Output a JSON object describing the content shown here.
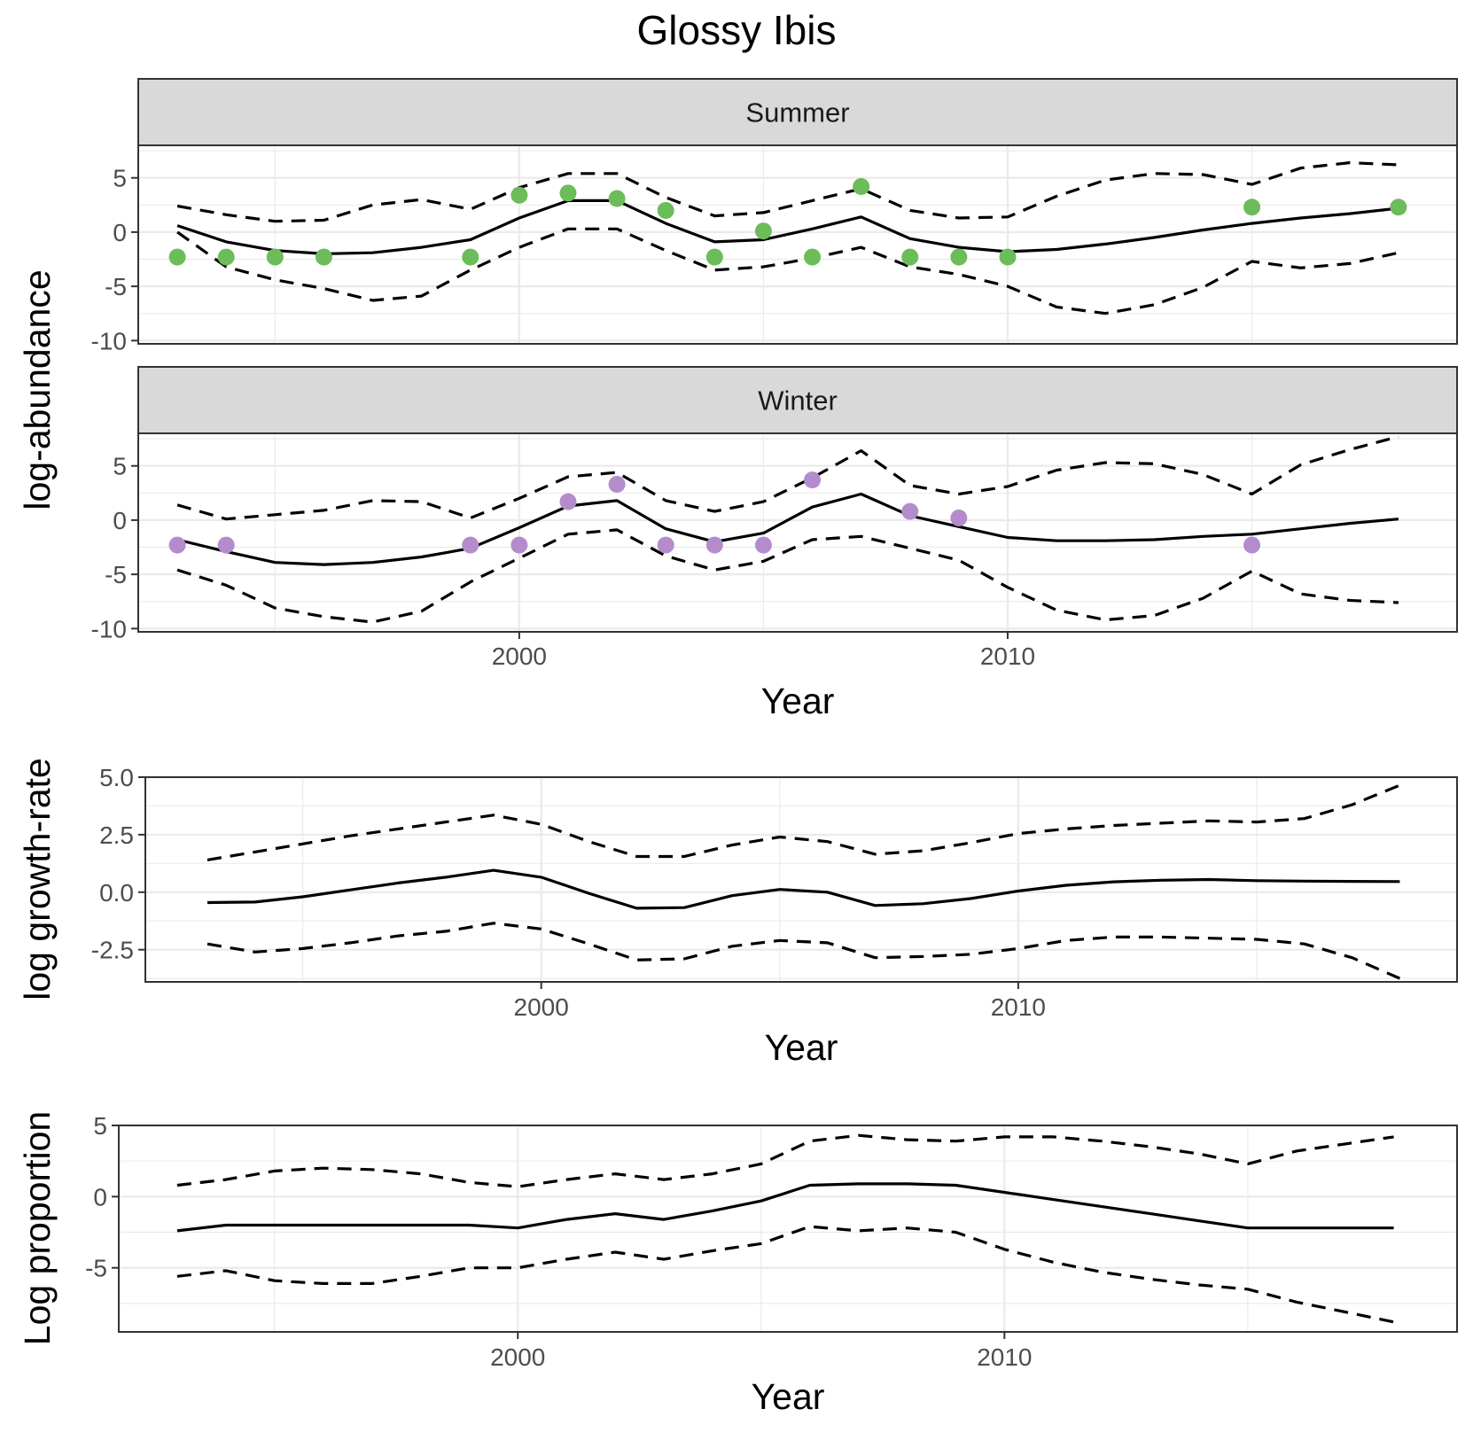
{
  "chart_data": {
    "title": "Glossy Ibis",
    "colors": {
      "summer_points": "#6cbc5a",
      "winter_points": "#b48ccc",
      "strip_fill": "#d9d9d9",
      "lines": "#000000"
    },
    "panels": [
      {
        "id": "summer",
        "type": "line",
        "strip": "Summer",
        "ylabel": "log-abundance",
        "xlabel": "",
        "xlim": [
          1992.2,
          2019.2
        ],
        "ylim": [
          -10.3,
          8
        ],
        "yticks": [
          -10,
          -5,
          0,
          5
        ],
        "ytick_labels": [
          "-10",
          "-5",
          "0",
          "5"
        ],
        "xticks": [],
        "xtick_labels": [],
        "series": [
          {
            "role": "estimate",
            "style": "solid",
            "x": [
              1993,
              1994,
              1995,
              1996,
              1997,
              1998,
              1999,
              2000,
              2001,
              2002,
              2003,
              2004,
              2005,
              2006,
              2007,
              2008,
              2009,
              2010,
              2011,
              2012,
              2013,
              2014,
              2015,
              2016,
              2017,
              2018
            ],
            "y": [
              0.6,
              -0.9,
              -1.7,
              -2.0,
              -1.9,
              -1.4,
              -0.7,
              1.3,
              2.9,
              2.9,
              0.8,
              -0.9,
              -0.7,
              0.3,
              1.4,
              -0.6,
              -1.4,
              -1.8,
              -1.6,
              -1.1,
              -0.5,
              0.2,
              0.8,
              1.3,
              1.7,
              2.2
            ]
          },
          {
            "role": "upper",
            "style": "dashed",
            "x": [
              1993,
              1994,
              1995,
              1996,
              1997,
              1998,
              1999,
              2000,
              2001,
              2002,
              2003,
              2004,
              2005,
              2006,
              2007,
              2008,
              2009,
              2010,
              2011,
              2012,
              2013,
              2014,
              2015,
              2016,
              2017,
              2018
            ],
            "y": [
              2.4,
              1.6,
              1.0,
              1.1,
              2.5,
              3.0,
              2.1,
              4.1,
              5.4,
              5.4,
              3.2,
              1.5,
              1.8,
              2.9,
              4.0,
              2.0,
              1.3,
              1.4,
              3.3,
              4.8,
              5.4,
              5.3,
              4.4,
              5.9,
              6.4,
              6.2
            ]
          },
          {
            "role": "lower",
            "style": "dashed",
            "x": [
              1993,
              1994,
              1995,
              1996,
              1997,
              1998,
              1999,
              2000,
              2001,
              2002,
              2003,
              2004,
              2005,
              2006,
              2007,
              2008,
              2009,
              2010,
              2011,
              2012,
              2013,
              2014,
              2015,
              2016,
              2017,
              2018
            ],
            "y": [
              0.0,
              -3.2,
              -4.4,
              -5.2,
              -6.3,
              -5.9,
              -3.5,
              -1.4,
              0.3,
              0.3,
              -1.7,
              -3.5,
              -3.2,
              -2.4,
              -1.4,
              -3.2,
              -3.9,
              -5.0,
              -6.9,
              -7.5,
              -6.7,
              -5.1,
              -2.7,
              -3.3,
              -2.9,
              -1.9
            ]
          }
        ],
        "points": {
          "x": [
            1993,
            1994,
            1995,
            1996,
            1999,
            2000,
            2001,
            2002,
            2003,
            2004,
            2005,
            2006,
            2007,
            2008,
            2009,
            2010,
            2015,
            2018
          ],
          "y": [
            -2.3,
            -2.3,
            -2.3,
            -2.3,
            -2.3,
            3.4,
            3.6,
            3.1,
            2.0,
            -2.3,
            0.1,
            -2.3,
            4.2,
            -2.3,
            -2.3,
            -2.3,
            2.3,
            2.3
          ]
        }
      },
      {
        "id": "winter",
        "type": "line",
        "strip": "Winter",
        "ylabel": "",
        "xlabel": "Year",
        "xlim": [
          1992.2,
          2019.2
        ],
        "ylim": [
          -10.3,
          8
        ],
        "yticks": [
          -10,
          -5,
          0,
          5
        ],
        "ytick_labels": [
          "-10",
          "-5",
          "0",
          "5"
        ],
        "xticks": [
          2000,
          2010
        ],
        "xtick_labels": [
          "2000",
          "2010"
        ],
        "series": [
          {
            "role": "estimate",
            "style": "solid",
            "x": [
              1993,
              1994,
              1995,
              1996,
              1997,
              1998,
              1999,
              2000,
              2001,
              2002,
              2003,
              2004,
              2005,
              2006,
              2007,
              2008,
              2009,
              2010,
              2011,
              2012,
              2013,
              2014,
              2015,
              2016,
              2017,
              2018
            ],
            "y": [
              -1.8,
              -2.9,
              -3.9,
              -4.1,
              -3.9,
              -3.4,
              -2.6,
              -0.7,
              1.3,
              1.8,
              -0.8,
              -2.0,
              -1.2,
              1.2,
              2.4,
              0.4,
              -0.6,
              -1.6,
              -1.9,
              -1.9,
              -1.8,
              -1.5,
              -1.3,
              -0.8,
              -0.3,
              0.1
            ]
          },
          {
            "role": "upper",
            "style": "dashed",
            "x": [
              1993,
              1994,
              1995,
              1996,
              1997,
              1998,
              1999,
              2000,
              2001,
              2002,
              2003,
              2004,
              2005,
              2006,
              2007,
              2008,
              2009,
              2010,
              2011,
              2012,
              2013,
              2014,
              2015,
              2016,
              2017,
              2018
            ],
            "y": [
              1.4,
              0.1,
              0.5,
              0.9,
              1.8,
              1.7,
              0.2,
              2.0,
              4.0,
              4.4,
              1.8,
              0.8,
              1.7,
              3.9,
              6.4,
              3.2,
              2.4,
              3.1,
              4.6,
              5.3,
              5.2,
              4.2,
              2.4,
              5.1,
              6.5,
              7.7
            ]
          },
          {
            "role": "lower",
            "style": "dashed",
            "x": [
              1993,
              1994,
              1995,
              1996,
              1997,
              1998,
              1999,
              2000,
              2001,
              2002,
              2003,
              2004,
              2005,
              2006,
              2007,
              2008,
              2009,
              2010,
              2011,
              2012,
              2013,
              2014,
              2015,
              2016,
              2017,
              2018
            ],
            "y": [
              -4.6,
              -6.0,
              -8.1,
              -8.9,
              -9.4,
              -8.4,
              -5.7,
              -3.5,
              -1.3,
              -0.9,
              -3.3,
              -4.6,
              -3.8,
              -1.8,
              -1.5,
              -2.6,
              -3.7,
              -6.2,
              -8.3,
              -9.2,
              -8.8,
              -7.2,
              -4.7,
              -6.8,
              -7.4,
              -7.6
            ]
          }
        ],
        "points": {
          "x": [
            1993,
            1994,
            1999,
            2000,
            2001,
            2002,
            2003,
            2004,
            2005,
            2006,
            2008,
            2009,
            2015
          ],
          "y": [
            -2.3,
            -2.3,
            -2.3,
            -2.3,
            1.7,
            3.3,
            -2.3,
            -2.3,
            -2.3,
            3.7,
            0.8,
            0.2,
            -2.3
          ]
        }
      },
      {
        "id": "growth",
        "type": "line",
        "strip": "",
        "ylabel": "log growth-rate",
        "xlabel": "Year",
        "xlim": [
          1991.7,
          2019.2
        ],
        "ylim": [
          -3.9,
          5.0
        ],
        "yticks": [
          -2.5,
          0.0,
          2.5,
          5.0
        ],
        "ytick_labels": [
          "-2.5",
          "0.0",
          "2.5",
          "5.0"
        ],
        "xticks": [
          2000,
          2010
        ],
        "xtick_labels": [
          "2000",
          "2010"
        ],
        "series": [
          {
            "role": "estimate",
            "style": "solid",
            "x": [
              1993,
              1994,
              1995,
              1996,
              1997,
              1998,
              1999,
              2000,
              2001,
              2002,
              2003,
              2004,
              2005,
              2006,
              2007,
              2008,
              2009,
              2010,
              2011,
              2012,
              2013,
              2014,
              2015,
              2016,
              2017,
              2018
            ],
            "y": [
              -0.45,
              -0.43,
              -0.2,
              0.1,
              0.4,
              0.65,
              0.95,
              0.65,
              -0.05,
              -0.7,
              -0.67,
              -0.15,
              0.12,
              0.0,
              -0.58,
              -0.5,
              -0.28,
              0.05,
              0.3,
              0.45,
              0.52,
              0.55,
              0.5,
              0.48,
              0.47,
              0.46
            ]
          },
          {
            "role": "upper",
            "style": "dashed",
            "x": [
              1993,
              1994,
              1995,
              1996,
              1997,
              1998,
              1999,
              2000,
              2001,
              2002,
              2003,
              2004,
              2005,
              2006,
              2007,
              2008,
              2009,
              2010,
              2011,
              2012,
              2013,
              2014,
              2015,
              2016,
              2017,
              2018
            ],
            "y": [
              1.4,
              1.75,
              2.1,
              2.45,
              2.75,
              3.05,
              3.35,
              2.95,
              2.2,
              1.55,
              1.55,
              2.05,
              2.4,
              2.2,
              1.65,
              1.8,
              2.15,
              2.55,
              2.75,
              2.9,
              3.0,
              3.1,
              3.05,
              3.2,
              3.8,
              4.65
            ]
          },
          {
            "role": "lower",
            "style": "dashed",
            "x": [
              1993,
              1994,
              1995,
              1996,
              1997,
              1998,
              1999,
              2000,
              2001,
              2002,
              2003,
              2004,
              2005,
              2006,
              2007,
              2008,
              2009,
              2010,
              2011,
              2012,
              2013,
              2014,
              2015,
              2016,
              2017,
              2018
            ],
            "y": [
              -2.25,
              -2.6,
              -2.45,
              -2.2,
              -1.9,
              -1.7,
              -1.35,
              -1.6,
              -2.25,
              -2.95,
              -2.9,
              -2.35,
              -2.1,
              -2.2,
              -2.85,
              -2.8,
              -2.7,
              -2.45,
              -2.1,
              -1.95,
              -1.95,
              -2.0,
              -2.05,
              -2.25,
              -2.85,
              -3.75
            ]
          }
        ]
      },
      {
        "id": "proportion",
        "type": "line",
        "strip": "",
        "ylabel": "Log proportion",
        "xlabel": "Year",
        "xlim": [
          1991.8,
          2019.3
        ],
        "ylim": [
          -9.5,
          5.0
        ],
        "yticks": [
          -5,
          0,
          5
        ],
        "ytick_labels": [
          "-5",
          "0",
          "5"
        ],
        "xticks": [
          2000,
          2010
        ],
        "xtick_labels": [
          "2000",
          "2010"
        ],
        "series": [
          {
            "role": "estimate",
            "style": "solid",
            "x": [
              1993,
              1994,
              1995,
              1996,
              1997,
              1998,
              1999,
              2000,
              2001,
              2002,
              2003,
              2004,
              2005,
              2006,
              2007,
              2008,
              2009,
              2010,
              2011,
              2012,
              2013,
              2014,
              2015,
              2016,
              2017,
              2018
            ],
            "y": [
              -2.4,
              -2.0,
              -2.0,
              -2.0,
              -2.0,
              -2.0,
              -2.0,
              -2.2,
              -1.6,
              -1.2,
              -1.6,
              -1.0,
              -0.3,
              0.8,
              0.9,
              0.9,
              0.8,
              0.3,
              -0.2,
              -0.7,
              -1.2,
              -1.7,
              -2.2,
              -2.2,
              -2.2,
              -2.2
            ]
          },
          {
            "role": "upper",
            "style": "dashed",
            "x": [
              1993,
              1994,
              1995,
              1996,
              1997,
              1998,
              1999,
              2000,
              2001,
              2002,
              2003,
              2004,
              2005,
              2006,
              2007,
              2008,
              2009,
              2010,
              2011,
              2012,
              2013,
              2014,
              2015,
              2016,
              2017,
              2018
            ],
            "y": [
              0.8,
              1.2,
              1.8,
              2.0,
              1.9,
              1.6,
              1.0,
              0.7,
              1.2,
              1.6,
              1.2,
              1.6,
              2.3,
              3.9,
              4.3,
              4.0,
              3.9,
              4.2,
              4.2,
              3.9,
              3.5,
              3.0,
              2.3,
              3.2,
              3.7,
              4.2
            ]
          },
          {
            "role": "lower",
            "style": "dashed",
            "x": [
              1993,
              1994,
              1995,
              1996,
              1997,
              1998,
              1999,
              2000,
              2001,
              2002,
              2003,
              2004,
              2005,
              2006,
              2007,
              2008,
              2009,
              2010,
              2011,
              2012,
              2013,
              2014,
              2015,
              2016,
              2017,
              2018
            ],
            "y": [
              -5.6,
              -5.2,
              -5.9,
              -6.1,
              -6.1,
              -5.6,
              -5.0,
              -5.0,
              -4.4,
              -3.9,
              -4.4,
              -3.8,
              -3.3,
              -2.1,
              -2.4,
              -2.2,
              -2.5,
              -3.7,
              -4.6,
              -5.3,
              -5.8,
              -6.2,
              -6.5,
              -7.4,
              -8.1,
              -8.8
            ]
          }
        ]
      }
    ]
  }
}
